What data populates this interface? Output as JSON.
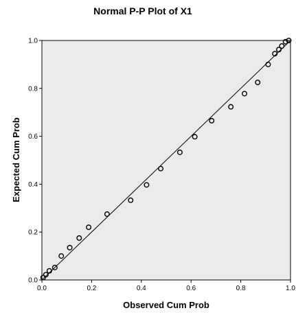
{
  "chart_data": {
    "type": "scatter",
    "title": "Normal P-P Plot of X1",
    "xlabel": "Observed Cum Prob",
    "ylabel": "Expected Cum Prob",
    "xlim": [
      0,
      1
    ],
    "ylim": [
      0,
      1
    ],
    "x_ticks": [
      0.0,
      0.2,
      0.4,
      0.6,
      0.8,
      1.0
    ],
    "y_ticks": [
      0.0,
      0.2,
      0.4,
      0.6,
      0.8,
      1.0
    ],
    "x_tick_labels": [
      "0.0",
      "0.2",
      "0.4",
      "0.6",
      "0.8",
      "1.0"
    ],
    "y_tick_labels": [
      "0.0",
      "0.2",
      "0.4",
      "0.6",
      "0.8",
      "1.0"
    ],
    "grid": false,
    "reference_line": {
      "x": [
        0,
        1
      ],
      "y": [
        0,
        1
      ]
    },
    "plot_background": "#ebebeb",
    "marker_color": "#000000",
    "marker_style": "hollow-circle",
    "x": [
      0.005,
      0.016,
      0.03,
      0.052,
      0.078,
      0.112,
      0.15,
      0.188,
      0.262,
      0.357,
      0.421,
      0.478,
      0.555,
      0.615,
      0.683,
      0.76,
      0.815,
      0.868,
      0.91,
      0.937,
      0.953,
      0.965,
      0.98,
      0.993
    ],
    "y": [
      0.01,
      0.022,
      0.038,
      0.052,
      0.1,
      0.135,
      0.175,
      0.22,
      0.275,
      0.333,
      0.397,
      0.465,
      0.533,
      0.598,
      0.665,
      0.723,
      0.778,
      0.825,
      0.9,
      0.945,
      0.962,
      0.977,
      0.995,
      1.0
    ]
  }
}
